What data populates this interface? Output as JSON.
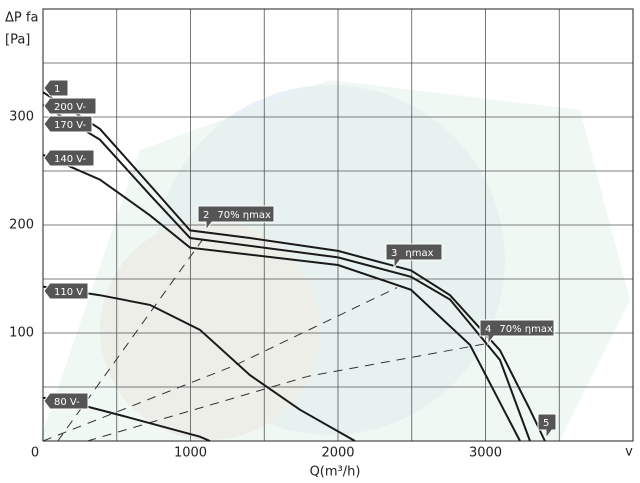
{
  "chart_data": {
    "type": "line",
    "y_label": [
      "ΔP fa",
      "[Pa]"
    ],
    "x_label": "Q(m³/h)",
    "x_end_label": "v",
    "xlim": [
      0,
      4000
    ],
    "ylim": [
      0,
      400
    ],
    "xticks": [
      0,
      1000,
      2000,
      3000
    ],
    "yticks": [
      100,
      200,
      300
    ],
    "x_minor_ticks": [
      500,
      1500,
      2500,
      3500
    ],
    "y_minor_ticks": [
      50,
      150,
      250,
      350
    ],
    "grid": true,
    "series": [
      {
        "name": "200 V-",
        "color": "#1a1a1a",
        "x": [
          0,
          386,
          725,
          997,
          1403,
          2000,
          2495,
          2759,
          3098,
          3302,
          3403
        ],
        "y": [
          323,
          289,
          237,
          195,
          188,
          176,
          158,
          135,
          84,
          29,
          0
        ]
      },
      {
        "name": "170 V-",
        "color": "#1a1a1a",
        "x": [
          0,
          386,
          725,
          997,
          2000,
          2495,
          2759,
          3098,
          3302
        ],
        "y": [
          311,
          279,
          228,
          188,
          170,
          152,
          131,
          75,
          0
        ]
      },
      {
        "name": "140 V-",
        "color": "#1a1a1a",
        "x": [
          0,
          386,
          725,
          997,
          2000,
          2495,
          2895,
          3234
        ],
        "y": [
          265,
          242,
          209,
          179,
          163,
          140,
          89,
          0
        ]
      },
      {
        "name": "110 V",
        "color": "#1a1a1a",
        "x": [
          0,
          386,
          725,
          1064,
          1403,
          1742,
          2115
        ],
        "y": [
          143,
          135,
          126,
          103,
          61,
          29,
          0
        ]
      },
      {
        "name": "80 V-",
        "color": "#1a1a1a",
        "x": [
          0,
          183,
          522,
          1064,
          1132
        ],
        "y": [
          40,
          36,
          24,
          4,
          0
        ]
      }
    ],
    "efficiency_lines": [
      {
        "color": "#333",
        "x": [
          100,
          1100
        ],
        "y": [
          0,
          190
        ]
      },
      {
        "color": "#333",
        "x": [
          0,
          1300,
          2400
        ],
        "y": [
          0,
          70,
          142
        ]
      },
      {
        "color": "#333",
        "x": [
          300,
          1800,
          3000
        ],
        "y": [
          0,
          60,
          90
        ]
      }
    ],
    "annotations": [
      {
        "number": "1"
      },
      {
        "number": "2",
        "text": "70% ηmax"
      },
      {
        "number": "3",
        "text": "ηmax"
      },
      {
        "number": "4",
        "text": "70% ηmax"
      },
      {
        "number": "5"
      }
    ]
  }
}
